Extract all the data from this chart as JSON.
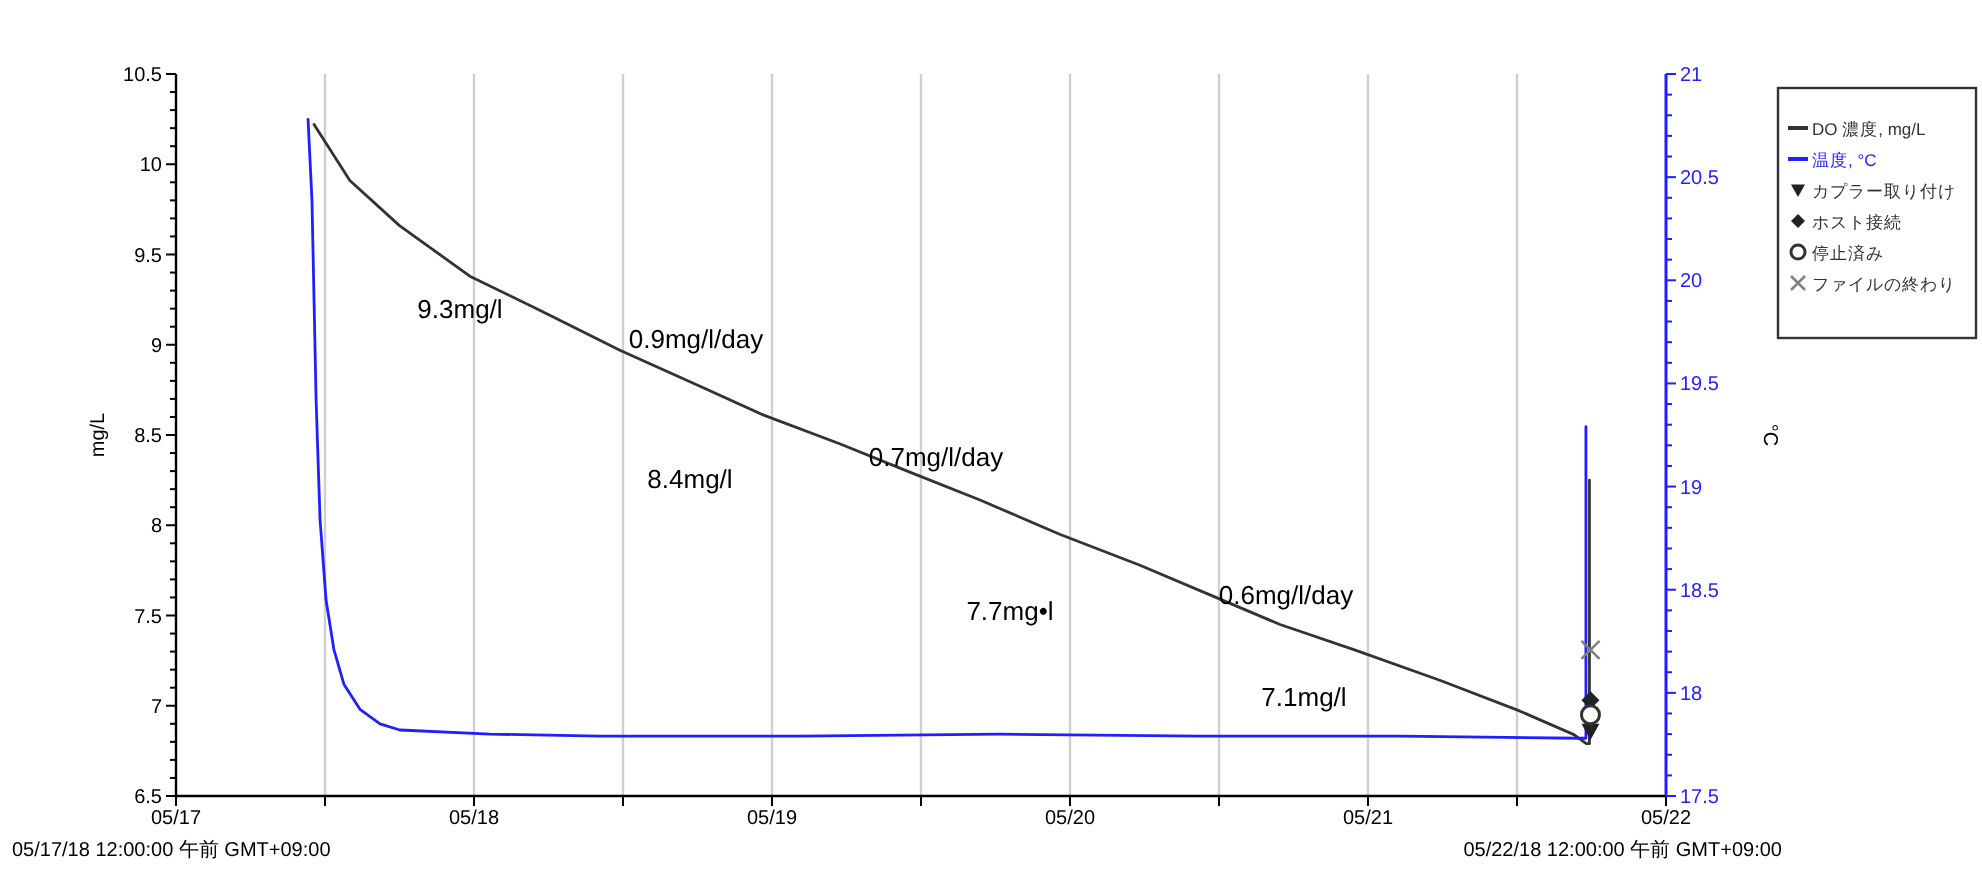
{
  "chart_data": {
    "type": "line",
    "ylabel": "mg/L",
    "y2label": "°C",
    "xlim": [
      "--05-17T00:00",
      "--05-22T00:00"
    ],
    "xticks": [
      {
        "value": "--05-17T00:00",
        "label": "05/17"
      },
      {
        "value": "--05-17T12:00",
        "label": null
      },
      {
        "value": "--05-18T00:00",
        "label": "05/18"
      },
      {
        "value": "--05-18T12:00",
        "label": null
      },
      {
        "value": "--05-19T00:00",
        "label": "05/19"
      },
      {
        "value": "--05-19T12:00",
        "label": null
      },
      {
        "value": "--05-20T00:00",
        "label": "05/20"
      },
      {
        "value": "--05-20T12:00",
        "label": null
      },
      {
        "value": "--05-21T00:00",
        "label": "05/21"
      },
      {
        "value": "--05-21T12:00",
        "label": null
      },
      {
        "value": "--05-22T00:00",
        "label": "05/22"
      }
    ],
    "ylim": [
      6.5,
      10.5
    ],
    "yticks": [
      6.5,
      {
        "value": 7,
        "label": "7"
      },
      7.5,
      {
        "value": 8,
        "label": "8"
      },
      8.5,
      {
        "value": 9,
        "label": "9"
      },
      9.5,
      {
        "value": 10,
        "label": "10"
      },
      10.5
    ],
    "y2lim": [
      17.5,
      21
    ],
    "y2ticks": [
      17.5,
      {
        "value": 18,
        "label": "18"
      },
      18.5,
      {
        "value": 19,
        "label": "19"
      },
      19.5,
      {
        "value": 20,
        "label": "20"
      },
      20.5,
      {
        "value": 21,
        "label": "21"
      }
    ],
    "grid": "x",
    "legend": "right",
    "series": [
      {
        "name": "DO 濃度, mg/L",
        "color": "#333333",
        "x": [
          "--05-17T11:07",
          "--05-17T14:00",
          "--05-17T18:00",
          "--05-17T23:40",
          "--05-18T05:20",
          "--05-18T11:45",
          "--05-18T18:12",
          "--05-18T23:20",
          "--05-19T05:30",
          "--05-19T11:15",
          "--05-19T16:45",
          "--05-19T23:10",
          "--05-20T05:35",
          "--05-20T11:05",
          "--05-20T16:55",
          "--05-20T22:55",
          "--05-21T05:50",
          "--05-21T12:15",
          "--05-21T16:35",
          "--05-21T17:35",
          "--05-21T17:50",
          "--05-21T17:50"
        ],
        "values": [
          10.22,
          9.91,
          9.66,
          9.38,
          9.19,
          8.97,
          8.77,
          8.61,
          8.45,
          8.29,
          8.14,
          7.95,
          7.78,
          7.62,
          7.45,
          7.31,
          7.14,
          6.97,
          6.84,
          6.79,
          6.79,
          8.25
        ]
      },
      {
        "name": "温度, °C",
        "color": "#1f1fff",
        "axis": "y2",
        "x": [
          "--05-17T10:38",
          "--05-17T10:57",
          "--05-17T11:17",
          "--05-17T11:36",
          "--05-17T12:05",
          "--05-17T12:43",
          "--05-17T13:32",
          "--05-17T14:49",
          "--05-17T16:26",
          "--05-17T18:02",
          "--05-18T01:17",
          "--05-18T10:09",
          "--05-19T02:15",
          "--05-19T18:22",
          "--05-20T10:28",
          "--05-21T02:34",
          "--05-21T17:04",
          "--05-21T17:33",
          "--05-21T17:33"
        ],
        "values": [
          20.78,
          20.39,
          19.42,
          18.84,
          18.45,
          18.21,
          18.04,
          17.92,
          17.85,
          17.82,
          17.8,
          17.79,
          17.79,
          17.8,
          17.79,
          17.79,
          17.78,
          17.78,
          19.29
        ]
      },
      {
        "name": "カプラー取り付け",
        "type": "scatter",
        "marker": "triangle",
        "color": "#222222",
        "x": [
          "--05-21T17:55"
        ],
        "values": [
          6.86
        ]
      },
      {
        "name": "ホスト接続",
        "type": "scatter",
        "marker": "diamond",
        "color": "#222222",
        "x": [
          "--05-21T17:55"
        ],
        "values": [
          7.03
        ]
      },
      {
        "name": "停止済み",
        "type": "scatter",
        "marker": "circle",
        "color": "#333333",
        "x": [
          "--05-21T17:55"
        ],
        "values": [
          6.95
        ]
      },
      {
        "name": "ファイルの終わり",
        "type": "scatter",
        "marker": "cross",
        "color": "#808080",
        "x": [
          "--05-21T17:55"
        ],
        "values": [
          7.31
        ]
      }
    ],
    "annotations": [
      "9.3mg/l",
      "0.9mg/l/day",
      "8.4mg/l",
      "0.7mg/l/day",
      "7.7mg•l",
      "0.6mg/l/day",
      "7.1mg/l",
      "05/17/18 12:00:00 午前 GMT+09:00",
      "05/22/18 12:00:00 午前 GMT+09:00"
    ]
  }
}
